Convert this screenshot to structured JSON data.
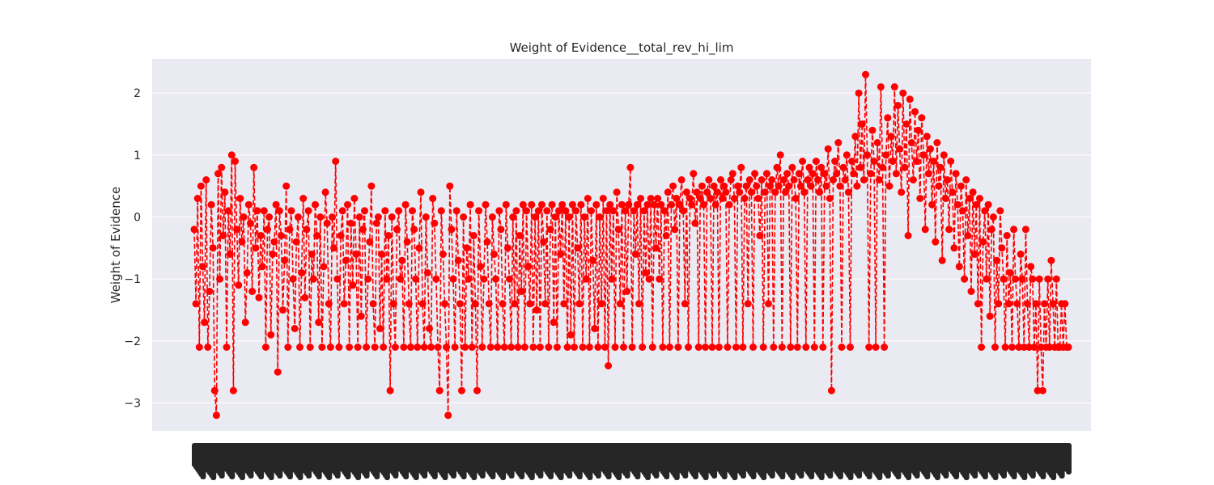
{
  "chart_data": {
    "type": "line",
    "title": "Weight of Evidence__total_rev_hi_lim",
    "xlabel": "",
    "ylabel": "Weight of Evidence",
    "ylim": [
      -3.45,
      2.55
    ],
    "yticks": [
      -3,
      -2,
      -1,
      0,
      1,
      2
    ],
    "ytick_labels": [
      "−3",
      "−2",
      "−1",
      "0",
      "1",
      "2"
    ],
    "x_tick_labels": "overlapping rotated category labels (unreadable)",
    "grid": true,
    "legend": "none",
    "marker": "circle",
    "linestyle": "dashed",
    "colors": {
      "series": "#ff0000",
      "plot_background": "#eaeaf2",
      "grid": "#ffffff",
      "text": "#262626"
    },
    "series": [
      {
        "values": [
          -0.2,
          -1.4,
          0.3,
          -2.1,
          0.5,
          -0.8,
          -1.7,
          0.6,
          -2.1,
          -1.2,
          0.2,
          -0.5,
          -2.8,
          -3.2,
          0.7,
          -1.0,
          0.8,
          -0.3,
          0.4,
          -2.1,
          0.1,
          -0.6,
          1.0,
          -2.8,
          0.9,
          -0.2,
          -1.1,
          0.3,
          -0.4,
          0.0,
          -1.7,
          -0.9,
          0.2,
          -0.1,
          -1.2,
          0.8,
          -0.5,
          0.1,
          -1.3,
          -0.3,
          -0.8,
          0.1,
          -2.1,
          -0.2,
          0.0,
          -1.9,
          -0.6,
          -0.4,
          0.2,
          -2.5,
          0.1,
          -0.3,
          -1.5,
          -0.7,
          0.5,
          -2.1,
          -0.2,
          0.1,
          -1.0,
          -1.8,
          -0.4,
          0.0,
          -2.1,
          -0.9,
          0.3,
          -1.3,
          -0.2,
          0.1,
          -2.1,
          -0.6,
          -1.0,
          0.2,
          -0.3,
          -1.7,
          0.0,
          -2.1,
          -0.8,
          0.4,
          -0.1,
          -1.4,
          -2.1,
          0.0,
          -0.5,
          0.9,
          -1.0,
          -2.1,
          -0.3,
          0.1,
          -1.4,
          -0.7,
          0.2,
          -2.1,
          -0.1,
          -1.1,
          0.3,
          -0.6,
          -2.1,
          0.0,
          -1.6,
          -0.2,
          0.1,
          -2.1,
          -1.0,
          -0.4,
          0.5,
          -1.4,
          -2.1,
          -0.1,
          0.0,
          -1.8,
          -0.6,
          -2.1,
          0.1,
          -1.0,
          -0.3,
          -2.8,
          0.0,
          -1.4,
          -2.1,
          -0.2,
          0.1,
          -1.0,
          -0.7,
          -2.1,
          0.2,
          -0.4,
          -1.4,
          -2.1,
          0.1,
          -0.2,
          -1.0,
          -2.1,
          -0.5,
          0.4,
          -1.4,
          -2.1,
          0.0,
          -0.9,
          -1.8,
          -2.1,
          0.3,
          -0.1,
          -1.0,
          -2.1,
          -2.8,
          0.1,
          -0.6,
          -1.4,
          -2.1,
          -3.2,
          0.5,
          -0.2,
          -1.0,
          -2.1,
          0.1,
          -0.7,
          -1.4,
          -2.8,
          0.0,
          -2.1,
          -0.5,
          -1.0,
          0.2,
          -2.1,
          -0.3,
          -1.4,
          -2.8,
          0.1,
          -0.8,
          -2.1,
          -1.0,
          0.2,
          -0.4,
          -1.4,
          -2.1,
          0.0,
          -0.6,
          -1.0,
          -2.1,
          0.1,
          -0.2,
          -1.4,
          -2.1,
          0.2,
          -0.5,
          -1.0,
          -2.1,
          0.0,
          -1.4,
          0.1,
          -2.1,
          -0.3,
          -1.2,
          0.2,
          -2.1,
          0.1,
          -0.8,
          -1.4,
          0.2,
          -2.1,
          0.0,
          -1.5,
          0.1,
          -2.1,
          0.2,
          -0.4,
          -1.4,
          0.1,
          -2.1,
          -0.2,
          0.2,
          -1.7,
          0.0,
          -2.1,
          0.1,
          -0.6,
          0.2,
          -1.4,
          0.1,
          -2.1,
          0.0,
          -1.9,
          0.2,
          -2.1,
          0.1,
          -0.5,
          -1.4,
          0.2,
          -2.1,
          0.0,
          -1.0,
          0.3,
          -2.1,
          0.1,
          -0.7,
          -1.8,
          0.2,
          -2.1,
          0.0,
          -1.4,
          0.3,
          -2.1,
          0.1,
          -2.4,
          0.2,
          -1.0,
          0.1,
          -2.1,
          0.4,
          -0.2,
          -1.4,
          0.2,
          -2.1,
          0.1,
          -1.2,
          0.2,
          0.8,
          -2.1,
          0.1,
          -0.6,
          0.2,
          -1.4,
          0.3,
          -2.1,
          0.1,
          -0.9,
          0.2,
          -1.0,
          0.3,
          -2.1,
          0.2,
          -0.5,
          0.3,
          -1.0,
          0.2,
          -2.1,
          0.1,
          -0.3,
          0.4,
          -2.1,
          0.2,
          0.5,
          -0.2,
          0.3,
          -2.1,
          0.2,
          0.6,
          0.1,
          -1.4,
          0.4,
          -2.1,
          0.3,
          0.2,
          0.7,
          -0.1,
          0.4,
          -2.1,
          0.3,
          0.5,
          0.2,
          -2.1,
          0.4,
          0.6,
          0.3,
          -2.1,
          0.5,
          0.2,
          0.4,
          -2.1,
          0.6,
          0.3,
          0.5,
          0.4,
          -2.1,
          0.2,
          0.6,
          0.7,
          0.3,
          -2.1,
          0.5,
          0.4,
          0.8,
          -2.1,
          0.3,
          0.5,
          -1.4,
          0.6,
          0.4,
          -2.1,
          0.7,
          0.5,
          0.3,
          -0.3,
          0.6,
          -2.1,
          0.4,
          0.7,
          -1.4,
          0.5,
          0.6,
          -2.1,
          0.4,
          0.8,
          0.5,
          1.0,
          -2.1,
          0.6,
          0.4,
          0.7,
          0.5,
          -2.1,
          0.8,
          0.6,
          0.3,
          -2.1,
          0.7,
          0.5,
          0.9,
          0.4,
          -2.1,
          0.6,
          0.8,
          0.5,
          0.7,
          -2.1,
          0.9,
          0.6,
          0.4,
          0.8,
          -2.1,
          0.7,
          0.5,
          1.1,
          0.3,
          -2.8,
          0.6,
          0.9,
          0.7,
          1.2,
          0.5,
          -2.1,
          0.8,
          0.6,
          1.0,
          0.4,
          -2.1,
          0.9,
          0.7,
          1.3,
          0.5,
          2.0,
          0.8,
          1.5,
          0.6,
          2.3,
          1.0,
          -2.1,
          0.7,
          1.4,
          0.9,
          -2.1,
          1.2,
          0.6,
          2.1,
          0.8,
          -2.1,
          1.0,
          1.6,
          0.5,
          1.3,
          0.9,
          2.1,
          0.7,
          1.8,
          1.1,
          0.4,
          2.0,
          0.8,
          1.5,
          -0.3,
          1.9,
          1.2,
          0.6,
          1.7,
          0.9,
          1.4,
          0.3,
          1.6,
          1.0,
          -0.2,
          1.3,
          0.7,
          1.1,
          0.2,
          0.9,
          -0.4,
          1.2,
          0.5,
          0.8,
          -0.7,
          1.0,
          0.3,
          0.6,
          -0.2,
          0.9,
          0.4,
          -0.5,
          0.7,
          0.2,
          -0.8,
          0.5,
          0.1,
          -1.0,
          0.6,
          -0.3,
          0.3,
          -1.2,
          0.4,
          -0.6,
          0.2,
          -1.4,
          0.3,
          -2.1,
          -0.4,
          0.1,
          -1.0,
          0.2,
          -1.6,
          -0.2,
          0.0,
          -2.1,
          -0.7,
          -1.4,
          0.1,
          -0.5,
          -1.0,
          -2.1,
          -0.3,
          -1.4,
          -0.9,
          -2.1,
          -0.2,
          -1.0,
          -1.4,
          -2.1,
          -0.6,
          -1.0,
          -2.1,
          -0.2,
          -1.4,
          -2.1,
          -0.8,
          -1.0,
          -2.1,
          -1.4,
          -2.8,
          -1.0,
          -2.1,
          -2.8,
          -1.4,
          -2.1,
          -1.0,
          -2.1,
          -0.7,
          -1.4,
          -2.1,
          -1.0,
          -2.1,
          -2.1,
          -1.4,
          -2.1,
          -1.4,
          -2.1,
          -2.1
        ]
      }
    ]
  }
}
